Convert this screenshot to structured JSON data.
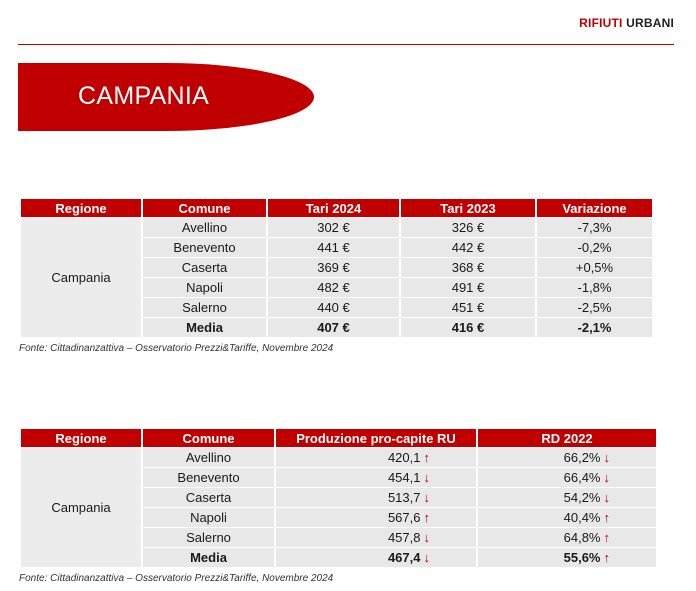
{
  "header": {
    "label_red": "RIFIUTI",
    "label_dark": "URBANI"
  },
  "title": "CAMPANIA",
  "table1": {
    "columns": [
      "Regione",
      "Comune",
      "Tari 2024",
      "Tari 2023",
      "Variazione"
    ],
    "region": "Campania",
    "rows": [
      {
        "comune": "Avellino",
        "tari2024": "302 €",
        "tari2023": "326 €",
        "variazione": "-7,3%"
      },
      {
        "comune": "Benevento",
        "tari2024": "441 €",
        "tari2023": "442 €",
        "variazione": "-0,2%"
      },
      {
        "comune": "Caserta",
        "tari2024": "369 €",
        "tari2023": "368 €",
        "variazione": "+0,5%"
      },
      {
        "comune": "Napoli",
        "tari2024": "482 €",
        "tari2023": "491 €",
        "variazione": "-1,8%"
      },
      {
        "comune": "Salerno",
        "tari2024": "440 €",
        "tari2023": "451 €",
        "variazione": "-2,5%"
      }
    ],
    "media": {
      "comune": "Media",
      "tari2024": "407 €",
      "tari2023": "416 €",
      "variazione": "-2,1%"
    },
    "source": "Fonte: Cittadinanzattiva – Osservatorio Prezzi&Tariffe, Novembre 2024"
  },
  "table2": {
    "columns": [
      "Regione",
      "Comune",
      "Produzione pro-capite RU",
      "RD 2022"
    ],
    "region": "Campania",
    "rows": [
      {
        "comune": "Avellino",
        "produzione": "420,1",
        "prod_arrow": "↑",
        "rd": "66,2%",
        "rd_arrow": "↓"
      },
      {
        "comune": "Benevento",
        "produzione": "454,1",
        "prod_arrow": "↓",
        "rd": "66,4%",
        "rd_arrow": "↓"
      },
      {
        "comune": "Caserta",
        "produzione": "513,7",
        "prod_arrow": "↓",
        "rd": "54,2%",
        "rd_arrow": "↓"
      },
      {
        "comune": "Napoli",
        "produzione": "567,6",
        "prod_arrow": "↑",
        "rd": "40,4%",
        "rd_arrow": "↑"
      },
      {
        "comune": "Salerno",
        "produzione": "457,8",
        "prod_arrow": "↓",
        "rd": "64,8%",
        "rd_arrow": "↑"
      }
    ],
    "media": {
      "comune": "Media",
      "produzione": "467,4",
      "prod_arrow": "↓",
      "rd": "55,6%",
      "rd_arrow": "↑"
    },
    "source": "Fonte: Cittadinanzattiva – Osservatorio Prezzi&Tariffe, Novembre 2024"
  }
}
